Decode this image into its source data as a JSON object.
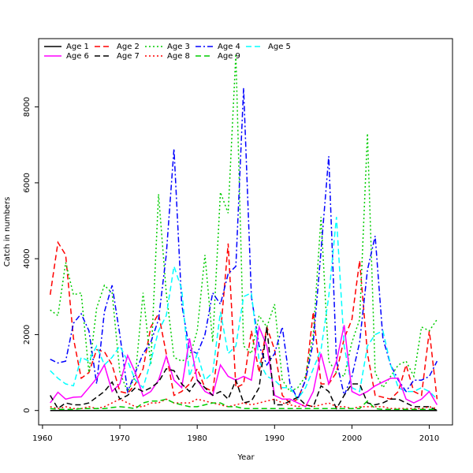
{
  "chart_data": {
    "type": "line",
    "title": "",
    "xlabel": "Year",
    "ylabel": "Catch in numbers",
    "xlim": [
      1959.5,
      2013.0
    ],
    "ylim": [
      -380,
      9800
    ],
    "xticks": [
      1960,
      1970,
      1980,
      1990,
      2000,
      2010
    ],
    "yticks": [
      0,
      2000,
      4000,
      6000,
      8000
    ],
    "grid": false,
    "legend_position": "top-left",
    "x": [
      1961,
      1962,
      1963,
      1964,
      1965,
      1966,
      1967,
      1968,
      1969,
      1970,
      1971,
      1972,
      1973,
      1974,
      1975,
      1976,
      1977,
      1978,
      1979,
      1980,
      1981,
      1982,
      1983,
      1984,
      1985,
      1986,
      1987,
      1988,
      1989,
      1990,
      1991,
      1992,
      1993,
      1994,
      1995,
      1996,
      1997,
      1998,
      1999,
      2000,
      2001,
      2002,
      2003,
      2004,
      2005,
      2006,
      2007,
      2008,
      2009,
      2010,
      2011
    ],
    "series": [
      {
        "name": "Age 1",
        "color": "#000000",
        "dash": "solid",
        "values": [
          0,
          0,
          0,
          0,
          0,
          0,
          0,
          0,
          0,
          0,
          0,
          0,
          0,
          0,
          0,
          0,
          0,
          0,
          0,
          0,
          0,
          0,
          0,
          0,
          0,
          0,
          0,
          0,
          0,
          0,
          0,
          0,
          0,
          0,
          0,
          0,
          0,
          0,
          0,
          0,
          0,
          0,
          0,
          0,
          0,
          0,
          0,
          0,
          0,
          0,
          0
        ]
      },
      {
        "name": "Age 2",
        "color": "#ff0000",
        "dash": "longdash",
        "values": [
          3050,
          4430,
          4100,
          1900,
          850,
          1000,
          1600,
          1550,
          1200,
          500,
          450,
          700,
          1100,
          2200,
          2550,
          1500,
          400,
          500,
          700,
          1100,
          600,
          500,
          2000,
          4400,
          600,
          700,
          2100,
          1000,
          2200,
          1600,
          400,
          200,
          300,
          800,
          2600,
          700,
          700,
          1000,
          1900,
          2400,
          3950,
          1500,
          400,
          350,
          300,
          500,
          1200,
          500,
          400,
          2100,
          300
        ]
      },
      {
        "name": "Age 3",
        "color": "#00cc00",
        "dash": "dotted",
        "values": [
          2650,
          2500,
          3900,
          3050,
          3100,
          1000,
          2700,
          3300,
          3100,
          1000,
          500,
          900,
          3100,
          1200,
          5700,
          3100,
          1400,
          1300,
          1400,
          2100,
          4100,
          1800,
          5750,
          5200,
          9400,
          1700,
          1500,
          2500,
          2200,
          2800,
          800,
          500,
          600,
          900,
          2000,
          5100,
          1300,
          1000,
          900,
          1800,
          2400,
          7300,
          1000,
          600,
          900,
          1200,
          1300,
          900,
          2200,
          2100,
          2400
        ]
      },
      {
        "name": "Age 4",
        "color": "#0000ff",
        "dash": "dashdot",
        "values": [
          1350,
          1250,
          1300,
          2300,
          2550,
          2100,
          700,
          2600,
          3300,
          2000,
          500,
          1000,
          1500,
          1800,
          2400,
          4100,
          6900,
          2800,
          1600,
          1500,
          2000,
          3100,
          2800,
          3600,
          3800,
          8500,
          3000,
          1700,
          1200,
          1500,
          2200,
          700,
          300,
          800,
          1800,
          4200,
          6700,
          1300,
          400,
          900,
          1800,
          3700,
          4600,
          1900,
          1200,
          800,
          500,
          800,
          800,
          900,
          1300
        ]
      },
      {
        "name": "Age 5",
        "color": "#00ffff",
        "dash": "longdash",
        "values": [
          1050,
          850,
          700,
          650,
          1400,
          1300,
          1700,
          1200,
          1400,
          1700,
          1300,
          800,
          600,
          1300,
          2100,
          2500,
          3800,
          3200,
          900,
          1500,
          800,
          1000,
          2600,
          1500,
          1700,
          3000,
          3100,
          1300,
          900,
          800,
          600,
          600,
          300,
          600,
          1100,
          1600,
          3000,
          5100,
          1700,
          600,
          500,
          1700,
          2000,
          2100,
          1200,
          600,
          500,
          500,
          600,
          500,
          300
        ]
      },
      {
        "name": "Age 6",
        "color": "#ff00ff",
        "dash": "solid",
        "values": [
          200,
          480,
          300,
          350,
          360,
          600,
          850,
          1200,
          500,
          700,
          1450,
          1000,
          380,
          500,
          800,
          1430,
          800,
          600,
          1900,
          800,
          500,
          400,
          1200,
          900,
          800,
          900,
          800,
          2200,
          1700,
          400,
          300,
          300,
          200,
          100,
          500,
          1500,
          700,
          1300,
          2250,
          500,
          400,
          500,
          650,
          750,
          850,
          850,
          300,
          200,
          300,
          500,
          150
        ]
      },
      {
        "name": "Age 7",
        "color": "#000000",
        "dash": "longdash",
        "values": [
          400,
          50,
          200,
          150,
          150,
          200,
          350,
          500,
          750,
          300,
          400,
          600,
          500,
          600,
          750,
          1100,
          1050,
          700,
          500,
          800,
          600,
          400,
          500,
          300,
          800,
          200,
          250,
          600,
          2200,
          150,
          150,
          250,
          350,
          150,
          100,
          650,
          500,
          50,
          400,
          700,
          700,
          200,
          150,
          200,
          300,
          300,
          200,
          100,
          100,
          100,
          0
        ]
      },
      {
        "name": "Age 8",
        "color": "#ff0000",
        "dash": "dotted",
        "values": [
          100,
          50,
          100,
          50,
          50,
          100,
          50,
          100,
          200,
          300,
          200,
          100,
          100,
          200,
          200,
          300,
          200,
          200,
          200,
          300,
          250,
          200,
          150,
          100,
          150,
          200,
          150,
          200,
          250,
          300,
          200,
          150,
          100,
          150,
          100,
          150,
          200,
          100,
          100,
          50,
          100,
          100,
          100,
          100,
          50,
          50,
          50,
          50,
          50,
          100,
          50
        ]
      },
      {
        "name": "Age 9",
        "color": "#00cc00",
        "dash": "longdash",
        "values": [
          50,
          30,
          30,
          30,
          50,
          50,
          50,
          50,
          80,
          100,
          80,
          50,
          200,
          250,
          250,
          300,
          200,
          150,
          100,
          100,
          150,
          200,
          200,
          100,
          100,
          50,
          50,
          50,
          50,
          50,
          50,
          50,
          50,
          50,
          50,
          50,
          50,
          50,
          50,
          50,
          50,
          250,
          50,
          30,
          30,
          30,
          30,
          30,
          30,
          30,
          30
        ]
      }
    ]
  }
}
